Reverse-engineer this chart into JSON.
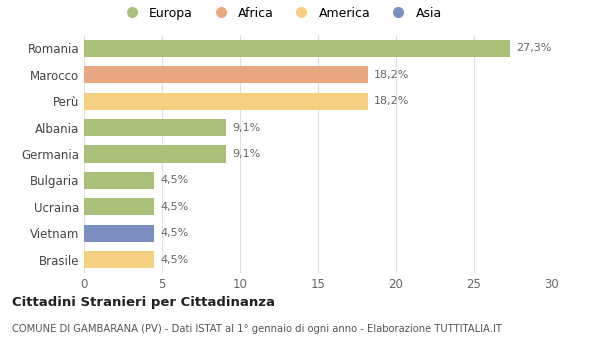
{
  "countries": [
    "Romania",
    "Marocco",
    "Perù",
    "Albania",
    "Germania",
    "Bulgaria",
    "Ucraina",
    "Vietnam",
    "Brasile"
  ],
  "values": [
    27.3,
    18.2,
    18.2,
    9.1,
    9.1,
    4.5,
    4.5,
    4.5,
    4.5
  ],
  "labels": [
    "27,3%",
    "18,2%",
    "18,2%",
    "9,1%",
    "9,1%",
    "4,5%",
    "4,5%",
    "4,5%",
    "4,5%"
  ],
  "colors": [
    "#a8c07a",
    "#e8a882",
    "#f5d080",
    "#a8c07a",
    "#a8c07a",
    "#a8c07a",
    "#a8c07a",
    "#7b8fc0",
    "#f5d080"
  ],
  "categories": [
    "Europa",
    "Africa",
    "America",
    "Asia"
  ],
  "category_colors": [
    "#a8c07a",
    "#e8a882",
    "#f5d080",
    "#7b8fc0"
  ],
  "xlim": [
    0,
    30
  ],
  "xticks": [
    0,
    5,
    10,
    15,
    20,
    25,
    30
  ],
  "title": "Cittadini Stranieri per Cittadinanza",
  "subtitle": "COMUNE DI GAMBARANA (PV) - Dati ISTAT al 1° gennaio di ogni anno - Elaborazione TUTTITALIA.IT",
  "background_color": "#ffffff",
  "grid_color": "#e0e0e0"
}
